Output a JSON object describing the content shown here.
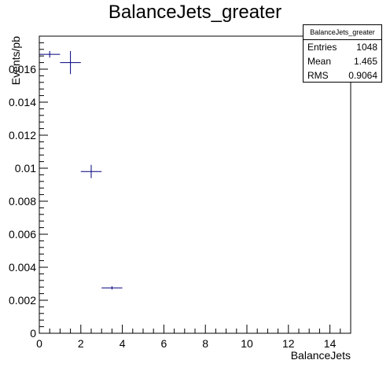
{
  "title": "BalanceJets_greater",
  "stats": {
    "name": "BalanceJets_greater",
    "rows": [
      {
        "label": "Entries",
        "value": "1048"
      },
      {
        "label": "Mean",
        "value": "1.465"
      },
      {
        "label": "RMS",
        "value": "0.9064"
      }
    ]
  },
  "chart_data": {
    "type": "scatter",
    "title": "BalanceJets_greater",
    "xlabel": "BalanceJets",
    "ylabel": "Events/pb",
    "xlim": [
      0,
      15
    ],
    "ylim": [
      0,
      0.018
    ],
    "x_ticks": [
      "0",
      "2",
      "4",
      "6",
      "8",
      "10",
      "12",
      "14"
    ],
    "y_ticks": [
      "0",
      "0.002",
      "0.004",
      "0.006",
      "0.008",
      "0.01",
      "0.012",
      "0.014",
      "0.016"
    ],
    "grid": false,
    "marker_color": "#00007f",
    "points": [
      {
        "x": 0.5,
        "y": 0.0169,
        "xerr": 0.5,
        "yerr": 0.0002
      },
      {
        "x": 1.5,
        "y": 0.0164,
        "xerr": 0.5,
        "yerr": 0.0007
      },
      {
        "x": 2.5,
        "y": 0.0098,
        "xerr": 0.5,
        "yerr": 0.0004
      },
      {
        "x": 3.5,
        "y": 0.00275,
        "xerr": 0.5,
        "yerr": 0.0001
      }
    ]
  }
}
